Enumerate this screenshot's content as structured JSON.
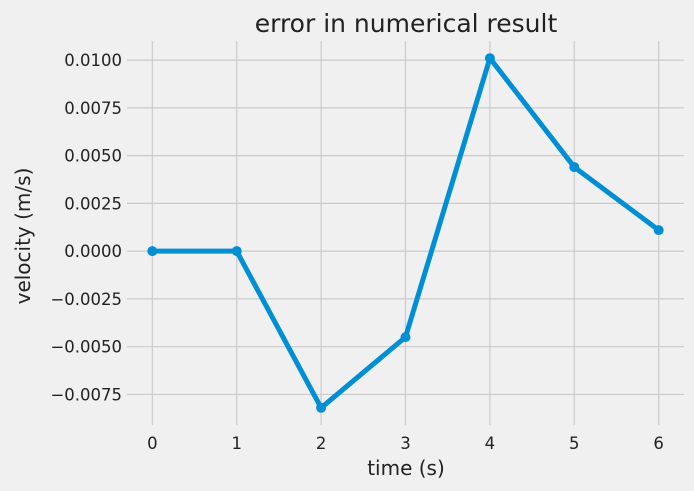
{
  "chart_data": {
    "type": "line",
    "title": "error in numerical result",
    "xlabel": "time (s)",
    "ylabel": "velocity (m/s)",
    "x": [
      0,
      1,
      2,
      3,
      4,
      5,
      6
    ],
    "series": [
      {
        "values": [
          0.0,
          0.0,
          -0.0082,
          -0.0045,
          0.0101,
          0.0044,
          0.0011
        ],
        "color": "#008fd5"
      }
    ],
    "xticks": [
      "0",
      "1",
      "2",
      "3",
      "4",
      "5",
      "6"
    ],
    "xtick_values": [
      0,
      1,
      2,
      3,
      4,
      5,
      6
    ],
    "yticks": [
      "−0.0075",
      "−0.0050",
      "−0.0025",
      "0.0000",
      "0.0025",
      "0.0050",
      "0.0075",
      "0.0100"
    ],
    "ytick_values": [
      -0.0075,
      -0.005,
      -0.0025,
      0.0,
      0.0025,
      0.005,
      0.0075,
      0.01
    ],
    "xlim": [
      -0.3,
      6.3
    ],
    "ylim": [
      -0.0091,
      0.011
    ],
    "grid": true,
    "background": "#f0f0f0",
    "grid_color": "#cbcbcb"
  }
}
